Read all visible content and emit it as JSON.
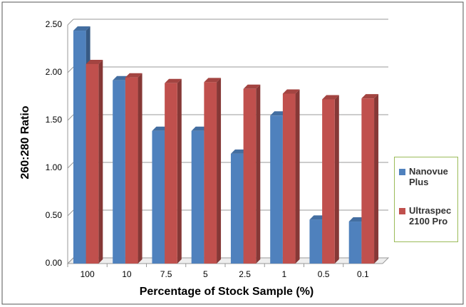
{
  "chart_data": {
    "type": "bar3d",
    "y_label": "260:280 Ratio",
    "x_label": "Percentage of Stock Sample (%)",
    "categories": [
      "100",
      "10",
      "7.5",
      "5",
      "2.5",
      "1",
      "0.5",
      "0.1"
    ],
    "series": [
      {
        "name": "Nanovue Plus",
        "color": "#4f81bd",
        "values": [
          2.44,
          1.92,
          1.39,
          1.39,
          1.15,
          1.55,
          0.46,
          0.44
        ]
      },
      {
        "name": "Ultraspec 2100 Pro",
        "color": "#c0504d",
        "values": [
          2.09,
          1.95,
          1.89,
          1.9,
          1.83,
          1.78,
          1.72,
          1.73
        ]
      }
    ],
    "ylim": [
      0,
      2.5
    ],
    "yticks": [
      {
        "value": 0,
        "label": "0.00"
      },
      {
        "value": 0.5,
        "label": "0.50"
      },
      {
        "value": 1,
        "label": "1.00"
      },
      {
        "value": 1.5,
        "label": "1.50"
      },
      {
        "value": 2,
        "label": "2.00"
      },
      {
        "value": 2.5,
        "label": "2.50"
      }
    ],
    "grid": true,
    "legend": "right"
  }
}
